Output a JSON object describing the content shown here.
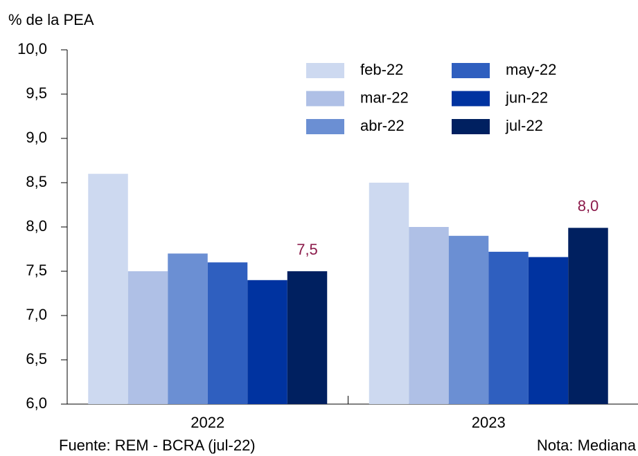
{
  "chart_data": {
    "type": "bar",
    "y_label": "% de la PEA",
    "source": "Fuente: REM - BCRA (jul-22)",
    "note": "Nota: Mediana",
    "categories": [
      "2022",
      "2023"
    ],
    "series": [
      {
        "name": "feb-22",
        "color": "#cdd9f0",
        "values": [
          8.6,
          8.5
        ]
      },
      {
        "name": "mar-22",
        "color": "#afc0e6",
        "values": [
          7.5,
          8.0
        ]
      },
      {
        "name": "abr-22",
        "color": "#6b8fd3",
        "values": [
          7.7,
          7.9
        ]
      },
      {
        "name": "may-22",
        "color": "#2f5fbf",
        "values": [
          7.6,
          7.72
        ]
      },
      {
        "name": "jun-22",
        "color": "#0033a0",
        "values": [
          7.4,
          7.66
        ]
      },
      {
        "name": "jul-22",
        "color": "#002060",
        "values": [
          7.5,
          7.99
        ],
        "value_labels": [
          "7,5",
          "8,0"
        ],
        "label_color": "#8b1a4a"
      }
    ],
    "ylim": [
      6.0,
      10.0
    ],
    "yticks": [
      {
        "value": 6.0,
        "label": "6,0"
      },
      {
        "value": 6.5,
        "label": "6,5"
      },
      {
        "value": 7.0,
        "label": "7,0"
      },
      {
        "value": 7.5,
        "label": "7,5"
      },
      {
        "value": 8.0,
        "label": "8,0"
      },
      {
        "value": 8.5,
        "label": "8,5"
      },
      {
        "value": 9.0,
        "label": "9,0"
      },
      {
        "value": 9.5,
        "label": "9,5"
      },
      {
        "value": 10.0,
        "label": "10,0"
      }
    ],
    "grid": false,
    "legend": "upper-right"
  }
}
